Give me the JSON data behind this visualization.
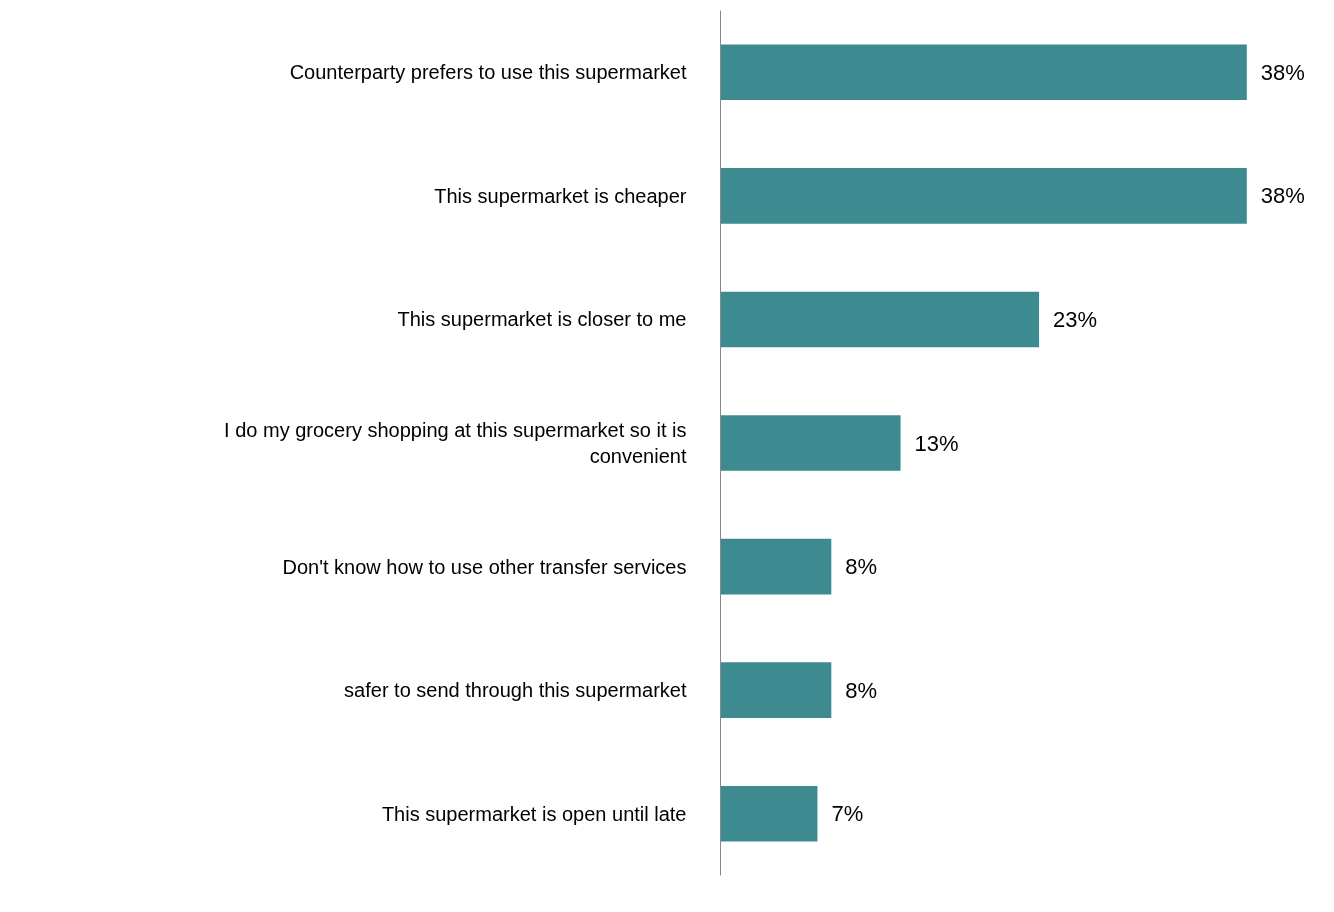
{
  "chart_data": {
    "type": "bar",
    "orientation": "horizontal",
    "categories": [
      "Counterparty prefers to use this supermarket",
      "This supermarket is cheaper",
      "This supermarket is closer to me",
      "I do my grocery shopping at this supermarket so it is convenient",
      "Don't know how to use other transfer services",
      "safer to send through this supermarket",
      "This supermarket is open until late"
    ],
    "values": [
      38,
      38,
      23,
      13,
      8,
      8,
      7
    ],
    "color": "#3d8b91",
    "value_labels": [
      "38%",
      "38%",
      "23%",
      "13%",
      "8%",
      "8%",
      "7%"
    ],
    "grid": false
  }
}
